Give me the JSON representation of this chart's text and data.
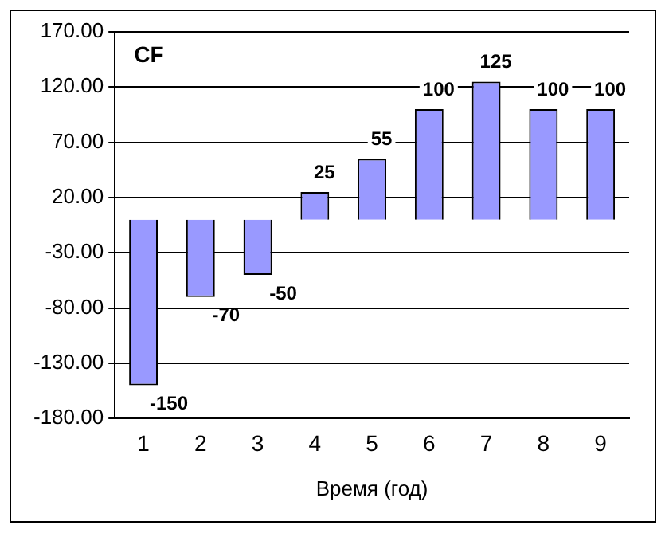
{
  "chart_data": {
    "type": "bar",
    "title": "CF",
    "xlabel": "Время (год)",
    "categories": [
      "1",
      "2",
      "3",
      "4",
      "5",
      "6",
      "7",
      "8",
      "9"
    ],
    "values": [
      -150,
      -70,
      -50,
      25,
      55,
      100,
      125,
      100,
      100
    ],
    "color": "#9999ff",
    "ylim": [
      -180,
      170
    ],
    "yticks": [
      {
        "value": -180,
        "label": "-180.00"
      },
      {
        "value": -130,
        "label": "-130.00"
      },
      {
        "value": -80,
        "label": "-80.00"
      },
      {
        "value": -30,
        "label": "-30.00"
      },
      {
        "value": 20,
        "label": "20.00"
      },
      {
        "value": 70,
        "label": "70.00"
      },
      {
        "value": 120,
        "label": "120.00"
      },
      {
        "value": 170,
        "label": "170.00"
      }
    ],
    "grid": "y",
    "legend": false,
    "data_labels": true
  }
}
